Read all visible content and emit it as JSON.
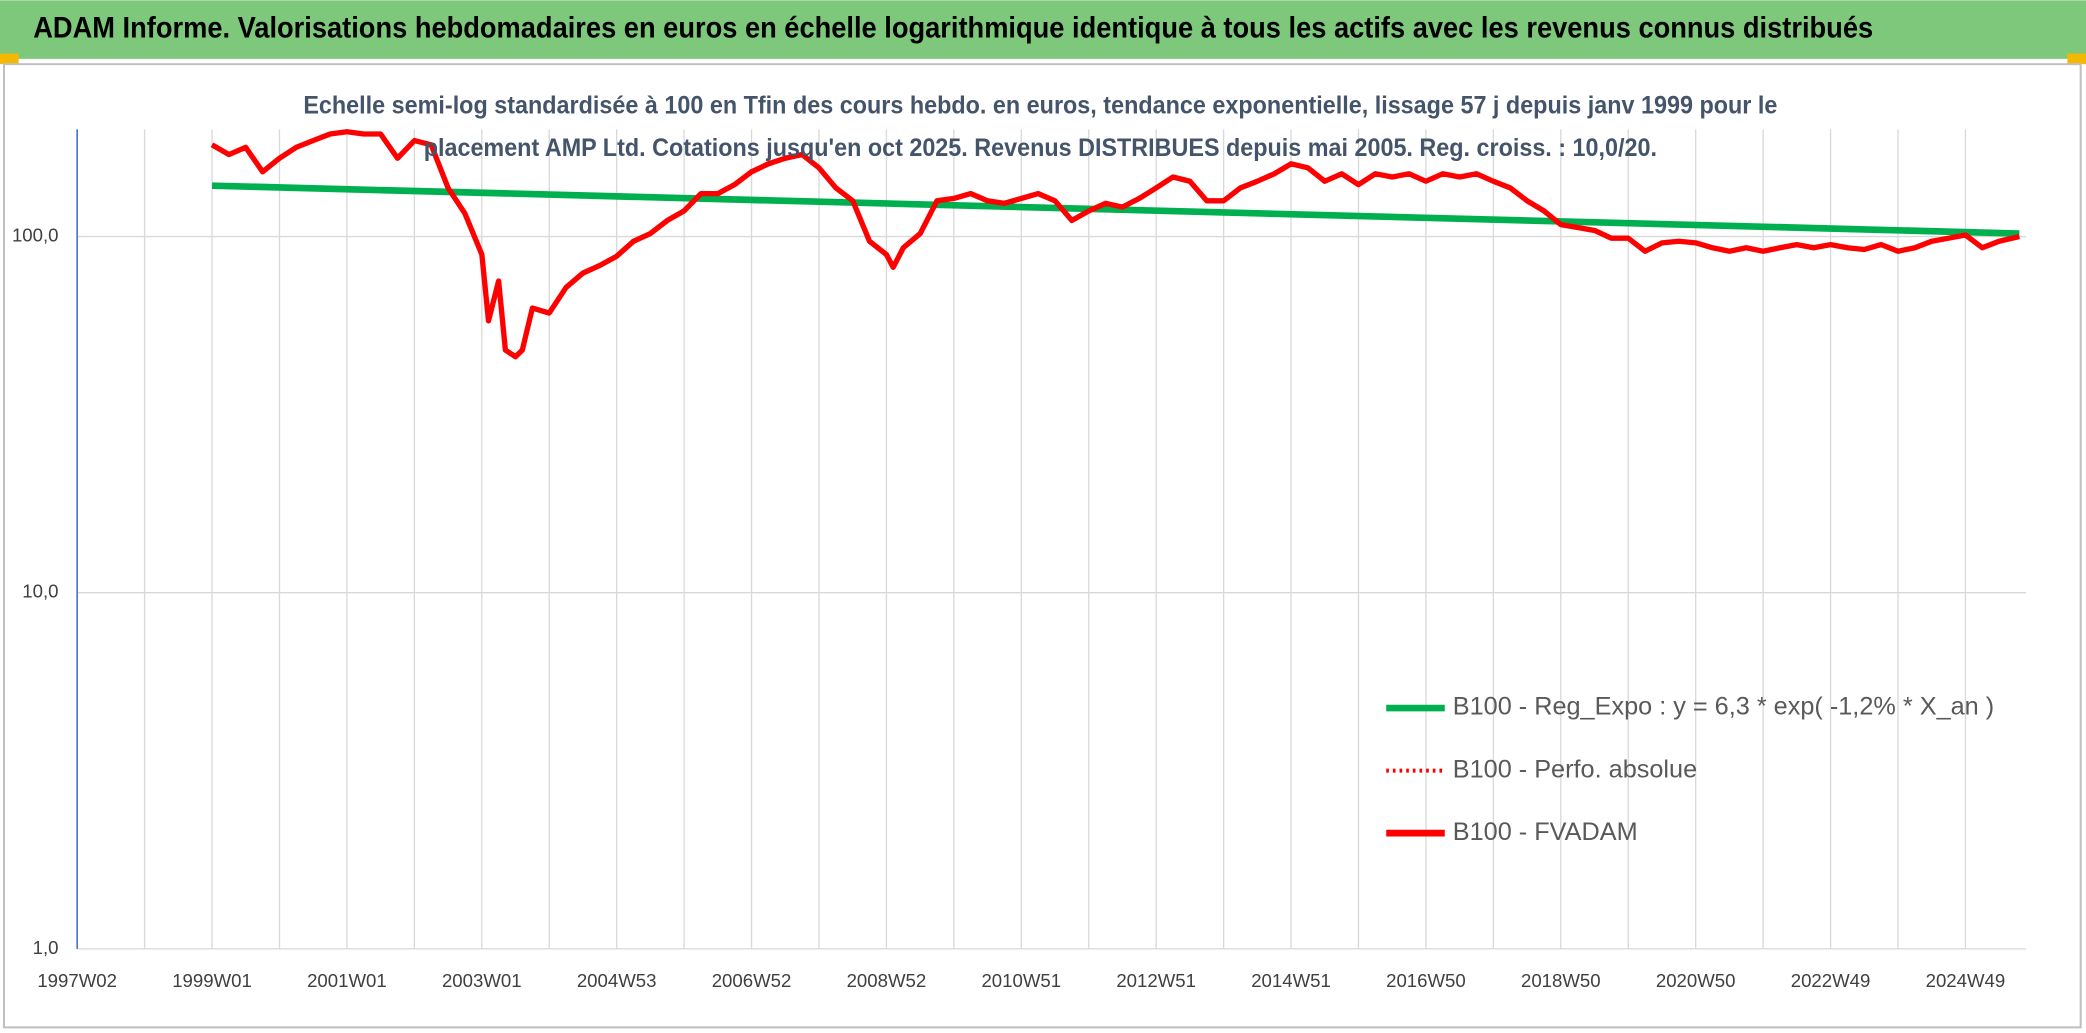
{
  "chart_data": {
    "type": "line",
    "title": "ADAM Informe. Valorisations hebdomadaires en euros en échelle logarithmique identique à tous les actifs avec les revenus connus distribués",
    "subtitle": [
      "Echelle semi-log standardisée à 100 en Tfin des cours hebdo. en euros, tendance exponentielle, lissage 57 j depuis janv 1999 pour le",
      "placement AMP Ltd. Cotations jusqu'en oct 2025. Revenus DISTRIBUES depuis mai 2005. Reg. croiss. : 10,0/20."
    ],
    "log_scale_y": true,
    "grid": true,
    "legend_position": "right",
    "xlim": [
      1997,
      2025.9
    ],
    "xticks": [
      {
        "value": 1997,
        "label": "1997W02"
      },
      {
        "value": 1999,
        "label": "1999W01"
      },
      {
        "value": 2001,
        "label": "2001W01"
      },
      {
        "value": 2003,
        "label": "2003W01"
      },
      {
        "value": 2005,
        "label": "2004W53"
      },
      {
        "value": 2007,
        "label": "2006W52"
      },
      {
        "value": 2009,
        "label": "2008W52"
      },
      {
        "value": 2011,
        "label": "2010W51"
      },
      {
        "value": 2013,
        "label": "2012W51"
      },
      {
        "value": 2015,
        "label": "2014W51"
      },
      {
        "value": 2017,
        "label": "2016W50"
      },
      {
        "value": 2019,
        "label": "2018W50"
      },
      {
        "value": 2021,
        "label": "2020W50"
      },
      {
        "value": 2023,
        "label": "2022W49"
      },
      {
        "value": 2025,
        "label": "2024W49"
      }
    ],
    "ylim": [
      1,
      200
    ],
    "yticks": [
      {
        "value": 1,
        "label": "1,0"
      },
      {
        "value": 10,
        "label": "10,0"
      },
      {
        "value": 100,
        "label": "100,0"
      }
    ],
    "series": [
      {
        "name": "B100 - Reg_Expo : y = 6,3 * exp( -1,2% *  X_an )",
        "color": "#00b050",
        "style": "solid",
        "x": [
          1999,
          2025.8
        ],
        "values": [
          139,
          102
        ]
      },
      {
        "name": "B100 - Perfo. absolue",
        "color": "#ff0000",
        "style": "dotted",
        "x": [
          1999,
          1999.25,
          1999.5,
          1999.75,
          2000,
          2000.25,
          2000.5,
          2000.75,
          2001,
          2001.25,
          2001.5,
          2001.75,
          2002,
          2002.25,
          2002.5,
          2002.75,
          2003,
          2003.1,
          2003.25,
          2003.35,
          2003.5,
          2003.6,
          2003.75,
          2004,
          2004.25,
          2004.5,
          2004.75,
          2005,
          2005.25,
          2005.5,
          2005.75,
          2006,
          2006.25,
          2006.5,
          2006.75,
          2007,
          2007.25,
          2007.5,
          2007.75,
          2008,
          2008.25,
          2008.5,
          2008.75,
          2009,
          2009.1,
          2009.25,
          2009.5,
          2009.75,
          2010,
          2010.25,
          2010.5,
          2010.75,
          2011,
          2011.25,
          2011.5,
          2011.75,
          2012,
          2012.25,
          2012.5,
          2012.75,
          2013,
          2013.25,
          2013.5,
          2013.75,
          2014,
          2014.25,
          2014.5,
          2014.75,
          2015,
          2015.25,
          2015.5,
          2015.75,
          2016,
          2016.25,
          2016.5,
          2016.75,
          2017,
          2017.25,
          2017.5,
          2017.75,
          2018,
          2018.25,
          2018.5,
          2018.75,
          2019,
          2019.25,
          2019.5,
          2019.75,
          2020,
          2020.25,
          2020.5,
          2020.75,
          2021,
          2021.25,
          2021.5,
          2021.75,
          2022,
          2022.25,
          2022.5,
          2022.75,
          2023,
          2023.25,
          2023.5,
          2023.75,
          2024,
          2024.25,
          2024.5,
          2024.75,
          2025,
          2025.25,
          2025.5,
          2025.8
        ],
        "values": [
          181,
          170,
          178,
          152,
          166,
          178,
          186,
          194,
          197,
          194,
          194,
          166,
          186,
          181,
          137,
          116,
          89,
          58,
          75,
          48,
          46,
          48,
          63,
          61,
          72,
          79,
          83,
          88,
          97,
          102,
          111,
          118,
          132,
          132,
          140,
          152,
          160,
          166,
          170,
          156,
          137,
          126,
          97,
          89,
          82,
          93,
          102,
          126,
          128,
          132,
          126,
          124,
          128,
          132,
          126,
          111,
          118,
          124,
          121,
          128,
          137,
          147,
          143,
          126,
          126,
          137,
          143,
          150,
          160,
          156,
          143,
          150,
          140,
          150,
          147,
          150,
          143,
          150,
          147,
          150,
          143,
          137,
          126,
          118,
          108,
          106,
          104,
          99,
          99,
          91,
          96,
          97,
          96,
          93,
          91,
          93,
          91,
          93,
          95,
          93,
          95,
          93,
          92,
          95,
          91,
          93,
          97,
          99,
          101,
          93,
          97,
          100
        ]
      },
      {
        "name": "B100 - FVADAM",
        "color": "#ff0000",
        "style": "solid",
        "x": [
          1999,
          1999.25,
          1999.5,
          1999.75,
          2000,
          2000.25,
          2000.5,
          2000.75,
          2001,
          2001.25,
          2001.5,
          2001.75,
          2002,
          2002.25,
          2002.5,
          2002.75,
          2003,
          2003.1,
          2003.25,
          2003.35,
          2003.5,
          2003.6,
          2003.75,
          2004,
          2004.25,
          2004.5,
          2004.75,
          2005,
          2005.25,
          2005.5,
          2005.75,
          2006,
          2006.25,
          2006.5,
          2006.75,
          2007,
          2007.25,
          2007.5,
          2007.75,
          2008,
          2008.25,
          2008.5,
          2008.75,
          2009,
          2009.1,
          2009.25,
          2009.5,
          2009.75,
          2010,
          2010.25,
          2010.5,
          2010.75,
          2011,
          2011.25,
          2011.5,
          2011.75,
          2012,
          2012.25,
          2012.5,
          2012.75,
          2013,
          2013.25,
          2013.5,
          2013.75,
          2014,
          2014.25,
          2014.5,
          2014.75,
          2015,
          2015.25,
          2015.5,
          2015.75,
          2016,
          2016.25,
          2016.5,
          2016.75,
          2017,
          2017.25,
          2017.5,
          2017.75,
          2018,
          2018.25,
          2018.5,
          2018.75,
          2019,
          2019.25,
          2019.5,
          2019.75,
          2020,
          2020.25,
          2020.5,
          2020.75,
          2021,
          2021.25,
          2021.5,
          2021.75,
          2022,
          2022.25,
          2022.5,
          2022.75,
          2023,
          2023.25,
          2023.5,
          2023.75,
          2024,
          2024.25,
          2024.5,
          2024.75,
          2025,
          2025.25,
          2025.5,
          2025.8
        ],
        "values": [
          181,
          170,
          178,
          152,
          166,
          178,
          186,
          194,
          197,
          194,
          194,
          166,
          186,
          181,
          137,
          116,
          89,
          58,
          75,
          48,
          46,
          48,
          63,
          61,
          72,
          79,
          83,
          88,
          97,
          102,
          111,
          118,
          132,
          132,
          140,
          152,
          160,
          166,
          170,
          156,
          137,
          126,
          97,
          89,
          82,
          93,
          102,
          126,
          128,
          132,
          126,
          124,
          128,
          132,
          126,
          111,
          118,
          124,
          121,
          128,
          137,
          147,
          143,
          126,
          126,
          137,
          143,
          150,
          160,
          156,
          143,
          150,
          140,
          150,
          147,
          150,
          143,
          150,
          147,
          150,
          143,
          137,
          126,
          118,
          108,
          106,
          104,
          99,
          99,
          91,
          96,
          97,
          96,
          93,
          91,
          93,
          91,
          93,
          95,
          93,
          95,
          93,
          92,
          95,
          91,
          93,
          97,
          99,
          101,
          93,
          97,
          100
        ]
      }
    ]
  }
}
